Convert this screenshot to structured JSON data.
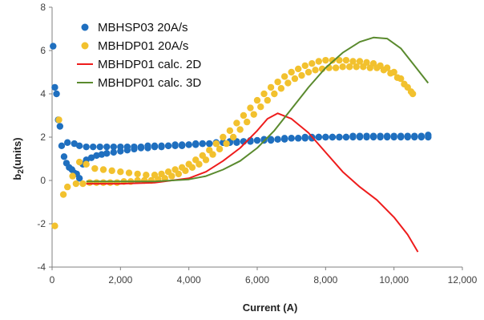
{
  "chart_data": {
    "type": "scatter",
    "xlabel": "Current (A)",
    "ylabel": "b",
    "ylabel_sub": "2",
    "ylabel_suffix": "(units)",
    "xlim": [
      0,
      12000
    ],
    "ylim": [
      -4,
      8
    ],
    "xticks": [
      0,
      2000,
      4000,
      6000,
      8000,
      10000,
      12000
    ],
    "xtick_labels": [
      "0",
      "2,000",
      "4,000",
      "6,000",
      "8,000",
      "10,000",
      "12,000"
    ],
    "yticks": [
      -4,
      -2,
      0,
      2,
      4,
      6,
      8
    ],
    "ytick_labels": [
      "-4",
      "-2",
      "0",
      "2",
      "4",
      "6",
      "8"
    ],
    "grid": false,
    "legend_position": "top-left",
    "series": [
      {
        "name": "MBHSP03 20A/s",
        "kind": "markers",
        "color": "#1f6fbf",
        "points": [
          [
            30,
            6.2
          ],
          [
            80,
            4.3
          ],
          [
            130,
            4.0
          ],
          [
            180,
            2.8
          ],
          [
            230,
            2.5
          ],
          [
            280,
            1.6
          ],
          [
            350,
            1.1
          ],
          [
            420,
            0.8
          ],
          [
            500,
            0.6
          ],
          [
            580,
            0.5
          ],
          [
            650,
            0.35
          ],
          [
            720,
            0.3
          ],
          [
            800,
            0.1
          ],
          [
            900,
            0.75
          ],
          [
            1000,
            0.95
          ],
          [
            1150,
            1.05
          ],
          [
            1300,
            1.15
          ],
          [
            1450,
            1.2
          ],
          [
            1600,
            1.25
          ],
          [
            1800,
            1.3
          ],
          [
            2000,
            1.35
          ],
          [
            2200,
            1.4
          ],
          [
            2400,
            1.45
          ],
          [
            2600,
            1.5
          ],
          [
            2800,
            1.5
          ],
          [
            3000,
            1.55
          ],
          [
            3200,
            1.55
          ],
          [
            3400,
            1.6
          ],
          [
            3600,
            1.6
          ],
          [
            3800,
            1.6
          ],
          [
            4000,
            1.65
          ],
          [
            4200,
            1.65
          ],
          [
            4400,
            1.7
          ],
          [
            4600,
            1.7
          ],
          [
            4800,
            1.7
          ],
          [
            5000,
            1.75
          ],
          [
            5200,
            1.75
          ],
          [
            5400,
            1.75
          ],
          [
            5600,
            1.8
          ],
          [
            5800,
            1.8
          ],
          [
            6000,
            1.85
          ],
          [
            6200,
            1.85
          ],
          [
            6400,
            1.85
          ],
          [
            6600,
            1.9
          ],
          [
            6800,
            1.9
          ],
          [
            7000,
            1.95
          ],
          [
            7200,
            1.95
          ],
          [
            7400,
            1.95
          ],
          [
            7600,
            1.95
          ],
          [
            7800,
            2.0
          ],
          [
            8000,
            2.0
          ],
          [
            8200,
            2.0
          ],
          [
            8400,
            2.0
          ],
          [
            8600,
            2.0
          ],
          [
            8800,
            2.05
          ],
          [
            9000,
            2.05
          ],
          [
            9200,
            2.05
          ],
          [
            9400,
            2.05
          ],
          [
            9600,
            2.05
          ],
          [
            9800,
            2.05
          ],
          [
            10000,
            2.05
          ],
          [
            10200,
            2.05
          ],
          [
            10400,
            2.05
          ],
          [
            10600,
            2.05
          ],
          [
            10800,
            2.05
          ],
          [
            11000,
            2.1
          ],
          [
            450,
            1.75
          ],
          [
            650,
            1.7
          ],
          [
            800,
            1.6
          ],
          [
            1000,
            1.55
          ],
          [
            1200,
            1.55
          ],
          [
            1400,
            1.55
          ],
          [
            1600,
            1.55
          ],
          [
            1800,
            1.55
          ],
          [
            2000,
            1.55
          ],
          [
            2200,
            1.55
          ],
          [
            2400,
            1.55
          ],
          [
            2600,
            1.55
          ],
          [
            2800,
            1.6
          ],
          [
            3000,
            1.6
          ],
          [
            3200,
            1.6
          ],
          [
            3400,
            1.6
          ],
          [
            3600,
            1.65
          ],
          [
            3800,
            1.65
          ],
          [
            4000,
            1.65
          ],
          [
            4200,
            1.7
          ],
          [
            4400,
            1.7
          ],
          [
            4600,
            1.7
          ],
          [
            4800,
            1.75
          ],
          [
            5000,
            1.75
          ],
          [
            5200,
            1.8
          ],
          [
            5400,
            1.8
          ],
          [
            5600,
            1.8
          ],
          [
            5800,
            1.85
          ],
          [
            6000,
            1.85
          ],
          [
            6200,
            1.9
          ],
          [
            6400,
            1.9
          ],
          [
            6600,
            1.9
          ],
          [
            6800,
            1.95
          ],
          [
            7000,
            1.95
          ],
          [
            7200,
            1.95
          ],
          [
            7400,
            2.0
          ],
          [
            7600,
            2.0
          ],
          [
            7800,
            2.0
          ],
          [
            8000,
            2.0
          ],
          [
            8200,
            2.0
          ],
          [
            8400,
            2.0
          ],
          [
            8600,
            2.0
          ],
          [
            8800,
            2.0
          ],
          [
            9000,
            2.0
          ],
          [
            9200,
            2.0
          ],
          [
            9400,
            2.0
          ],
          [
            9600,
            2.0
          ],
          [
            9800,
            2.0
          ],
          [
            10000,
            2.0
          ],
          [
            10200,
            2.0
          ],
          [
            10400,
            2.0
          ],
          [
            10600,
            2.0
          ],
          [
            10800,
            2.0
          ],
          [
            11000,
            2.0
          ]
        ]
      },
      {
        "name": "MBHDP01 20A/s",
        "kind": "markers",
        "color": "#f2c12e",
        "points": [
          [
            80,
            -2.1
          ],
          [
            200,
            2.8
          ],
          [
            330,
            -0.65
          ],
          [
            450,
            -0.3
          ],
          [
            600,
            0.2
          ],
          [
            800,
            0.85
          ],
          [
            1000,
            0.75
          ],
          [
            1250,
            0.55
          ],
          [
            1500,
            0.5
          ],
          [
            1750,
            0.45
          ],
          [
            2000,
            0.4
          ],
          [
            2250,
            0.35
          ],
          [
            2500,
            0.3
          ],
          [
            2750,
            0.25
          ],
          [
            3000,
            0.25
          ],
          [
            3200,
            0.3
          ],
          [
            3400,
            0.4
          ],
          [
            3600,
            0.5
          ],
          [
            3800,
            0.6
          ],
          [
            4000,
            0.75
          ],
          [
            4200,
            0.95
          ],
          [
            4400,
            1.15
          ],
          [
            4600,
            1.4
          ],
          [
            4800,
            1.7
          ],
          [
            5000,
            2.0
          ],
          [
            5200,
            2.3
          ],
          [
            5400,
            2.65
          ],
          [
            5600,
            3.0
          ],
          [
            5800,
            3.35
          ],
          [
            6000,
            3.7
          ],
          [
            6200,
            4.0
          ],
          [
            6400,
            4.3
          ],
          [
            6600,
            4.55
          ],
          [
            6800,
            4.8
          ],
          [
            7000,
            5.0
          ],
          [
            7200,
            5.15
          ],
          [
            7400,
            5.3
          ],
          [
            7600,
            5.4
          ],
          [
            7800,
            5.5
          ],
          [
            8000,
            5.55
          ],
          [
            8200,
            5.55
          ],
          [
            8400,
            5.55
          ],
          [
            8600,
            5.55
          ],
          [
            8800,
            5.5
          ],
          [
            9000,
            5.5
          ],
          [
            9200,
            5.45
          ],
          [
            9400,
            5.4
          ],
          [
            9600,
            5.3
          ],
          [
            9800,
            5.2
          ],
          [
            10000,
            5.0
          ],
          [
            10200,
            4.7
          ],
          [
            10400,
            4.3
          ],
          [
            10550,
            4.0
          ],
          [
            700,
            -0.15
          ],
          [
            900,
            -0.15
          ],
          [
            1100,
            -0.1
          ],
          [
            1300,
            -0.1
          ],
          [
            1500,
            -0.1
          ],
          [
            1700,
            -0.1
          ],
          [
            1900,
            -0.1
          ],
          [
            2100,
            -0.05
          ],
          [
            2300,
            -0.05
          ],
          [
            2500,
            0.0
          ],
          [
            2700,
            0.0
          ],
          [
            2900,
            0.0
          ],
          [
            3100,
            0.05
          ],
          [
            3300,
            0.1
          ],
          [
            3500,
            0.2
          ],
          [
            3700,
            0.3
          ],
          [
            3900,
            0.45
          ],
          [
            4100,
            0.6
          ],
          [
            4300,
            0.75
          ],
          [
            4500,
            0.95
          ],
          [
            4700,
            1.2
          ],
          [
            4900,
            1.45
          ],
          [
            5100,
            1.7
          ],
          [
            5300,
            2.0
          ],
          [
            5500,
            2.35
          ],
          [
            5700,
            2.7
          ],
          [
            5900,
            3.05
          ],
          [
            6100,
            3.4
          ],
          [
            6300,
            3.7
          ],
          [
            6500,
            4.0
          ],
          [
            6700,
            4.25
          ],
          [
            6900,
            4.5
          ],
          [
            7100,
            4.7
          ],
          [
            7300,
            4.85
          ],
          [
            7500,
            5.0
          ],
          [
            7700,
            5.1
          ],
          [
            7900,
            5.15
          ],
          [
            8100,
            5.2
          ],
          [
            8300,
            5.2
          ],
          [
            8500,
            5.25
          ],
          [
            8700,
            5.25
          ],
          [
            8900,
            5.25
          ],
          [
            9100,
            5.25
          ],
          [
            9300,
            5.2
          ],
          [
            9500,
            5.2
          ],
          [
            9700,
            5.1
          ],
          [
            9900,
            4.95
          ],
          [
            10100,
            4.75
          ],
          [
            10300,
            4.45
          ],
          [
            10500,
            4.1
          ]
        ]
      },
      {
        "name": "MBHDP01 calc. 2D",
        "kind": "line",
        "color": "#ee1c1c",
        "points": [
          [
            1000,
            -0.15
          ],
          [
            2000,
            -0.15
          ],
          [
            3000,
            -0.1
          ],
          [
            4000,
            0.1
          ],
          [
            4500,
            0.4
          ],
          [
            5000,
            0.9
          ],
          [
            5500,
            1.5
          ],
          [
            6000,
            2.3
          ],
          [
            6300,
            2.85
          ],
          [
            6600,
            3.1
          ],
          [
            7000,
            2.85
          ],
          [
            7500,
            2.2
          ],
          [
            8000,
            1.3
          ],
          [
            8500,
            0.4
          ],
          [
            9000,
            -0.3
          ],
          [
            9500,
            -0.9
          ],
          [
            10000,
            -1.7
          ],
          [
            10400,
            -2.5
          ],
          [
            10700,
            -3.3
          ]
        ]
      },
      {
        "name": "MBHDP01 calc. 3D",
        "kind": "line",
        "color": "#5a8a2e",
        "points": [
          [
            1000,
            -0.05
          ],
          [
            2000,
            -0.05
          ],
          [
            3000,
            -0.05
          ],
          [
            4000,
            0.05
          ],
          [
            4500,
            0.2
          ],
          [
            5000,
            0.5
          ],
          [
            5500,
            0.9
          ],
          [
            6000,
            1.5
          ],
          [
            6500,
            2.3
          ],
          [
            7000,
            3.3
          ],
          [
            7500,
            4.3
          ],
          [
            8000,
            5.2
          ],
          [
            8500,
            5.9
          ],
          [
            9000,
            6.4
          ],
          [
            9400,
            6.6
          ],
          [
            9800,
            6.55
          ],
          [
            10200,
            6.1
          ],
          [
            10600,
            5.3
          ],
          [
            11000,
            4.5
          ]
        ]
      }
    ]
  }
}
